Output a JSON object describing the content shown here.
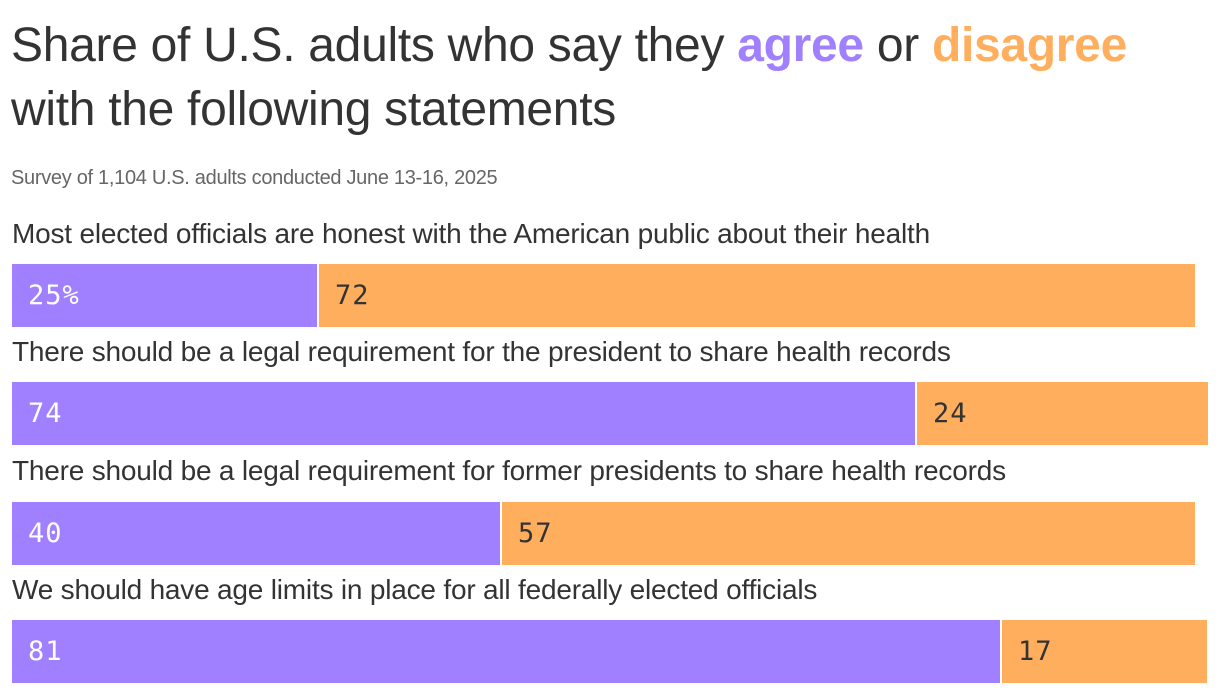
{
  "header": {
    "title_part1": "Share of U.S. adults who say they ",
    "title_agree": "agree",
    "title_mid": " or ",
    "title_disagree": "disagree",
    "title_part2": " with the following statements",
    "subtitle": "Survey of 1,104 U.S. adults conducted June 13-16, 2025"
  },
  "colors": {
    "agree": "#a180ff",
    "disagree": "#ffae5e",
    "text": "#333333"
  },
  "rows": [
    {
      "label": "Most elected officials are honest with the American public about their health",
      "agree_label": "25%",
      "disagree_label": "72"
    },
    {
      "label": "There should be a legal requirement for the president to share health records",
      "agree_label": "74",
      "disagree_label": "24"
    },
    {
      "label": "There should be a legal requirement for former presidents to share health records",
      "agree_label": "40",
      "disagree_label": "57"
    },
    {
      "label": "We should have age limits in place for all federally elected officials",
      "agree_label": "81",
      "disagree_label": "17"
    }
  ],
  "chart_data": {
    "type": "bar",
    "orientation": "horizontal",
    "stacked": true,
    "title": "Share of U.S. adults who say they agree or disagree with the following statements",
    "subtitle": "Survey of 1,104 U.S. adults conducted June 13-16, 2025",
    "categories": [
      "Most elected officials are honest with the American public about their health",
      "There should be a legal requirement for the president to share health records",
      "There should be a legal requirement for former presidents to share health records",
      "We should have age limits in place for all federally elected officials"
    ],
    "series": [
      {
        "name": "agree",
        "color": "#a180ff",
        "values": [
          25,
          74,
          40,
          81
        ]
      },
      {
        "name": "disagree",
        "color": "#ffae5e",
        "values": [
          72,
          24,
          57,
          17
        ]
      }
    ],
    "unit": "%",
    "xlabel": "",
    "ylabel": "",
    "xlim": [
      0,
      100
    ],
    "grid": false,
    "legend": "inline in title"
  }
}
